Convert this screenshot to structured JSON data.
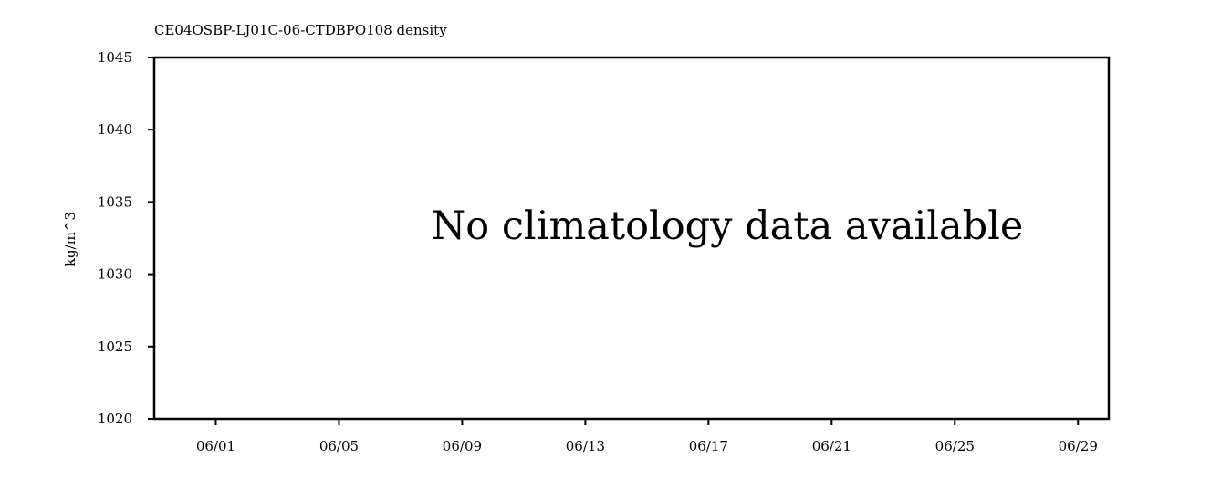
{
  "chart_data": {
    "type": "line",
    "title": "CE04OSBP-LJ01C-06-CTDBPO108 density",
    "ylabel": "kg/m^3",
    "xlabel": "",
    "x_ticks": [
      "06/01",
      "06/05",
      "06/09",
      "06/13",
      "06/17",
      "06/21",
      "06/25",
      "06/29"
    ],
    "y_ticks": [
      "1045",
      "1040",
      "1035",
      "1030",
      "1025",
      "1020"
    ],
    "ylim": [
      1020,
      1045
    ],
    "xlim": [
      "05/30",
      "06/30"
    ],
    "series": [],
    "annotation": "No climatology data available",
    "grid": false,
    "legend": "none"
  }
}
